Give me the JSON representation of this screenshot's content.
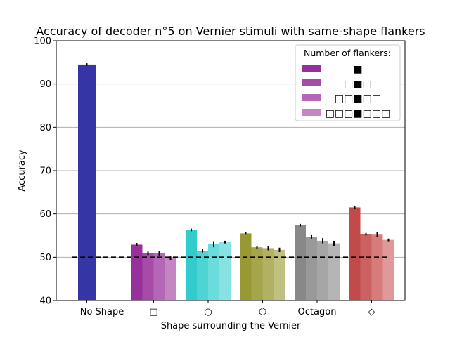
{
  "chart_data": {
    "type": "bar",
    "title": "Accuracy of decoder n°5 on Vernier stimuli with same-shape flankers",
    "xlabel": "Shape surrounding the Vernier",
    "ylabel": "Accuracy",
    "ylim": [
      40,
      100
    ],
    "yticks": [
      "40",
      "50",
      "60",
      "70",
      "80",
      "90",
      "100"
    ],
    "grid": "horizontal",
    "reference_line": 50,
    "categories": [
      "No Shape",
      "□",
      "○",
      "⬡",
      "Octagon",
      "◇"
    ],
    "legend": {
      "title": "Number of flankers:",
      "placement": "top-right",
      "entries": [
        "■",
        "□■□",
        "□□■□□",
        "□□□■□□□"
      ]
    },
    "groups": [
      {
        "category": "No Shape",
        "values": [
          94.5
        ],
        "errors": [
          0.3
        ],
        "colors": [
          "#3535a5"
        ]
      },
      {
        "category": "□",
        "values": [
          52.9,
          50.9,
          50.9,
          49.8
        ],
        "errors": [
          0.4,
          0.4,
          0.5,
          0.4
        ],
        "colors": [
          "#98309b",
          "#a64ca8",
          "#b467b6",
          "#c386c3"
        ]
      },
      {
        "category": "○",
        "values": [
          56.3,
          51.5,
          53.0,
          53.5
        ],
        "errors": [
          0.3,
          0.4,
          0.7,
          0.3
        ],
        "colors": [
          "#33cccc",
          "#4fd4d4",
          "#6bdcdc",
          "#89e2e2"
        ]
      },
      {
        "category": "⬡",
        "values": [
          55.5,
          52.3,
          52.1,
          51.7
        ],
        "errors": [
          0.3,
          0.3,
          0.5,
          0.5
        ],
        "colors": [
          "#999933",
          "#a5a54b",
          "#b1b163",
          "#c0c080"
        ]
      },
      {
        "category": "Octagon",
        "values": [
          57.4,
          54.7,
          53.8,
          53.2
        ],
        "errors": [
          0.3,
          0.4,
          0.6,
          0.6
        ],
        "colors": [
          "#888888",
          "#999999",
          "#a6a6a6",
          "#b5b5b5"
        ]
      },
      {
        "category": "◇",
        "values": [
          61.5,
          55.3,
          55.2,
          54.0
        ],
        "errors": [
          0.4,
          0.3,
          0.6,
          0.3
        ],
        "colors": [
          "#c14a4a",
          "#cc6161",
          "#d77b7b",
          "#e09999"
        ]
      }
    ]
  }
}
